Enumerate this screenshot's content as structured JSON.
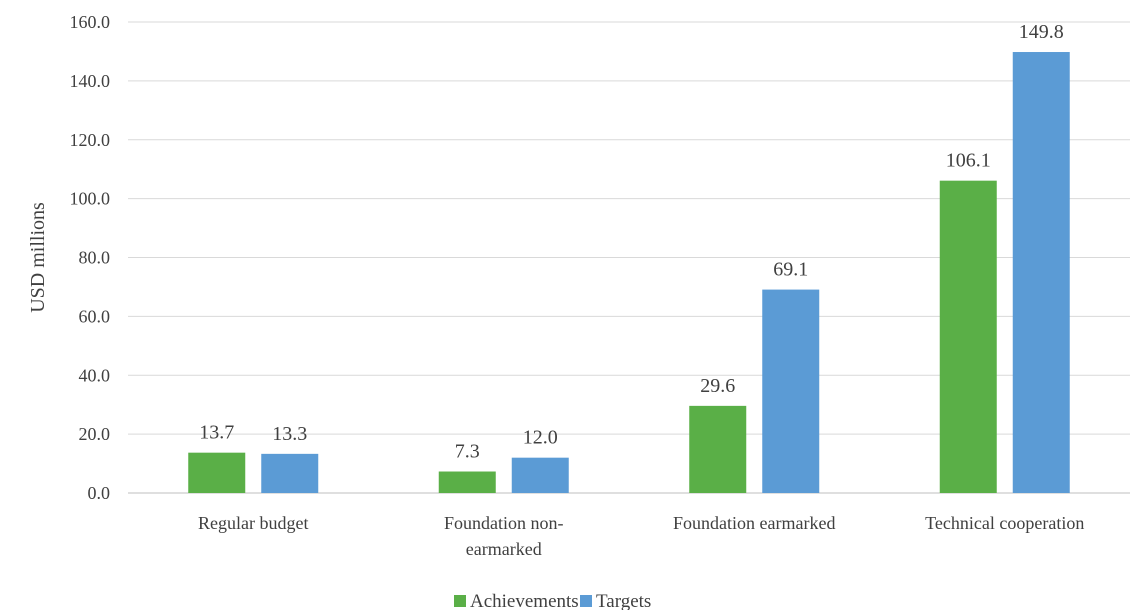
{
  "chart_data": {
    "type": "bar",
    "ylabel": "USD millions",
    "ylim": [
      0,
      160
    ],
    "yticks": [
      "0.0",
      "20.0",
      "40.0",
      "60.0",
      "80.0",
      "100.0",
      "120.0",
      "140.0",
      "160.0"
    ],
    "categories": [
      [
        "Regular budget"
      ],
      [
        "Foundation non-",
        "earmarked"
      ],
      [
        "Foundation earmarked"
      ],
      [
        "Technical cooperation"
      ]
    ],
    "series": [
      {
        "name": "Achievements",
        "color": "#5aaf47",
        "values": [
          13.7,
          7.3,
          29.6,
          106.1
        ]
      },
      {
        "name": "Targets",
        "color": "#5b9bd5",
        "values": [
          13.3,
          12.0,
          69.1,
          149.8
        ]
      }
    ],
    "grid": true,
    "legend_position": "bottom-center"
  }
}
